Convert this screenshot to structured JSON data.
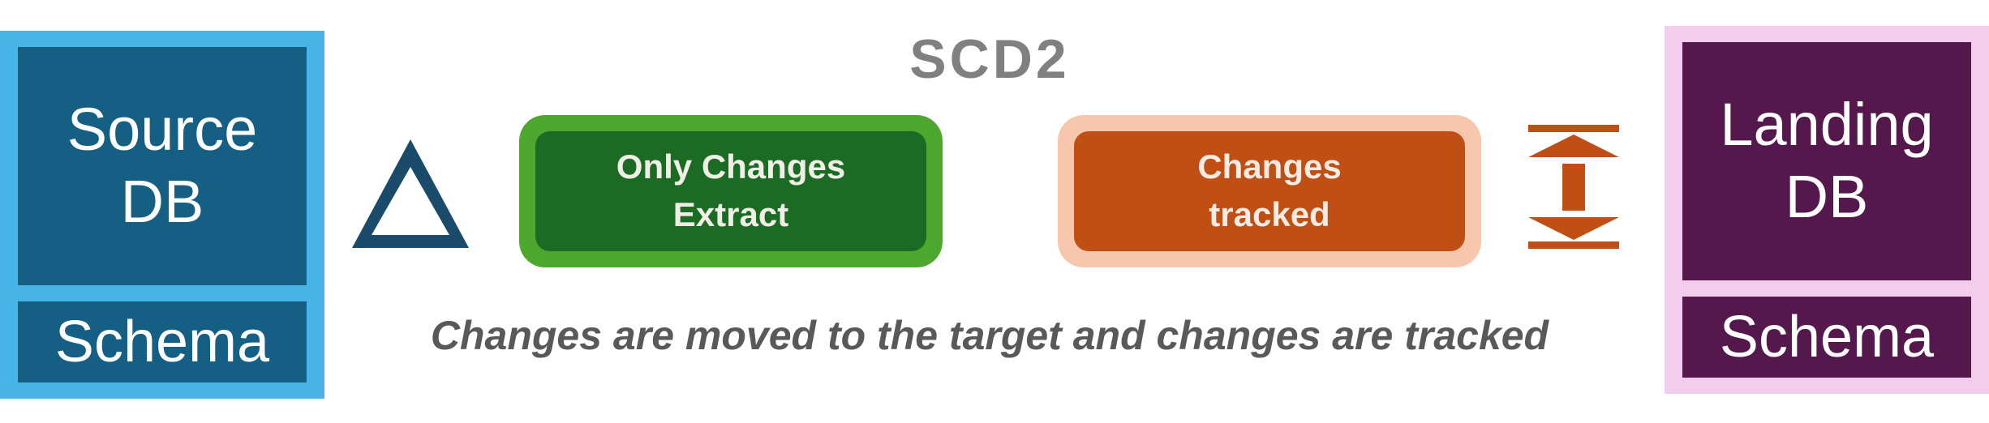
{
  "title": "SCD2",
  "source": {
    "db_label": "Source\nDB",
    "schema_label": "Schema"
  },
  "process": {
    "extract_label": "Only Changes\nExtract",
    "tracked_label": "Changes\ntracked"
  },
  "caption": "Changes are moved to the target and changes are tracked",
  "landing": {
    "db_label": "Landing\nDB",
    "schema_label": "Schema"
  },
  "colors": {
    "source_outer": "#48b3e6",
    "source_fill": "#155f84",
    "delta_icon": "#1b4b6b",
    "extract_outer": "#4ea72e",
    "extract_fill": "#1c6b24",
    "tracked_outer": "#f6c6ad",
    "tracked_fill": "#c04f15",
    "range_icon": "#c04f15",
    "landing_outer": "#f2cdee",
    "landing_fill": "#55184c",
    "title_text": "#808080",
    "caption_text": "#595959"
  },
  "icons": {
    "delta": "delta-icon",
    "range": "vertical-range-arrows-icon"
  }
}
